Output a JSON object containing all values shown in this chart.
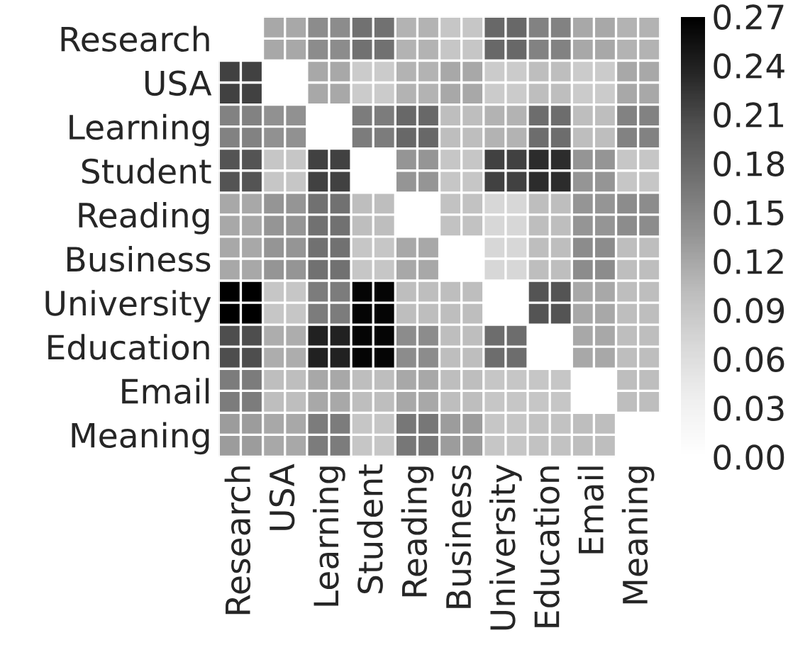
{
  "chart_data": {
    "type": "heatmap",
    "categories": [
      "Research",
      "USA",
      "Learning",
      "Student",
      "Reading",
      "Business",
      "University",
      "Education",
      "Email",
      "Meaning"
    ],
    "y_categories": [
      "Research",
      "USA",
      "Learning",
      "Student",
      "Reading",
      "Business",
      "University",
      "Education",
      "Email",
      "Meaning"
    ],
    "cells": [
      [
        null,
        0.12,
        0.145,
        0.17,
        0.11,
        0.09,
        0.18,
        0.155,
        0.12,
        0.11
      ],
      [
        0.215,
        null,
        0.12,
        0.085,
        0.11,
        0.12,
        0.085,
        0.1,
        0.085,
        0.12
      ],
      [
        0.155,
        0.14,
        null,
        0.16,
        0.18,
        0.1,
        0.11,
        0.175,
        0.1,
        0.155
      ],
      [
        0.2,
        0.09,
        0.215,
        null,
        0.135,
        0.09,
        0.215,
        0.23,
        0.135,
        0.09
      ],
      [
        0.12,
        0.135,
        0.17,
        0.1,
        null,
        0.095,
        0.07,
        0.1,
        0.135,
        0.145
      ],
      [
        0.12,
        0.135,
        0.17,
        0.09,
        0.12,
        null,
        0.07,
        0.1,
        0.145,
        0.1
      ],
      [
        0.27,
        0.09,
        0.16,
        0.265,
        0.1,
        0.1,
        null,
        0.2,
        0.12,
        0.1
      ],
      [
        0.205,
        0.115,
        0.24,
        0.265,
        0.145,
        0.1,
        0.175,
        null,
        0.12,
        0.1
      ],
      [
        0.16,
        0.1,
        0.12,
        0.1,
        0.12,
        0.1,
        0.09,
        0.09,
        null,
        0.1
      ],
      [
        0.13,
        0.12,
        0.16,
        0.09,
        0.165,
        0.13,
        0.09,
        0.095,
        0.1,
        null
      ]
    ],
    "clim": [
      0.0,
      0.27
    ],
    "cticks": [
      {
        "value": 0.0,
        "label": "0.00"
      },
      {
        "value": 0.03,
        "label": "0.03"
      },
      {
        "value": 0.06,
        "label": "0.06"
      },
      {
        "value": 0.09,
        "label": "0.09"
      },
      {
        "value": 0.12,
        "label": "0.12"
      },
      {
        "value": 0.15,
        "label": "0.15"
      },
      {
        "value": 0.18,
        "label": "0.18"
      },
      {
        "value": 0.21,
        "label": "0.21"
      },
      {
        "value": 0.24,
        "label": "0.24"
      },
      {
        "value": 0.27,
        "label": "0.27"
      }
    ],
    "grid": true
  }
}
